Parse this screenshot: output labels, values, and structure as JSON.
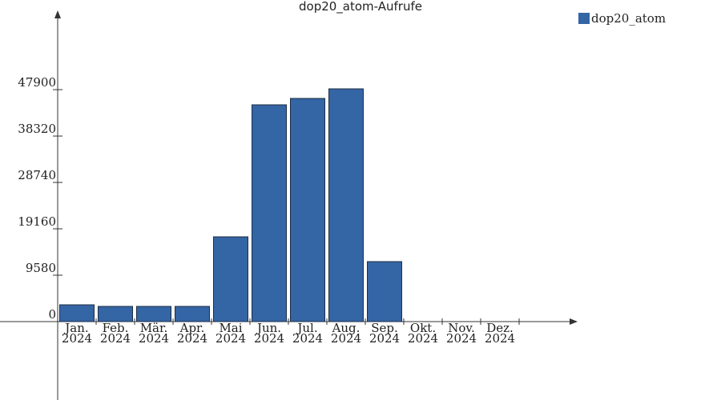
{
  "chart_data": {
    "type": "bar",
    "title": "dop20_atom-Aufrufe",
    "categories": [
      "Jan.\n2024",
      "Feb.\n2024",
      "Mär.\n2024",
      "Apr.\n2024",
      "Mai\n2024",
      "Jun.\n2024",
      "Jul.\n2024",
      "Aug.\n2024",
      "Sep.\n2024",
      "Okt.\n2024",
      "Nov.\n2024",
      "Dez.\n2024"
    ],
    "series": [
      {
        "name": "dop20_atom",
        "color": "#3465a4",
        "values": [
          3470,
          3140,
          3140,
          3140,
          17510,
          44770,
          46090,
          48070,
          12390,
          0,
          0,
          0
        ]
      }
    ],
    "ylim": [
      0,
      63440
    ],
    "yticks": [
      0,
      9580,
      19160,
      28740,
      38320,
      47900
    ],
    "legend": "top-right"
  }
}
